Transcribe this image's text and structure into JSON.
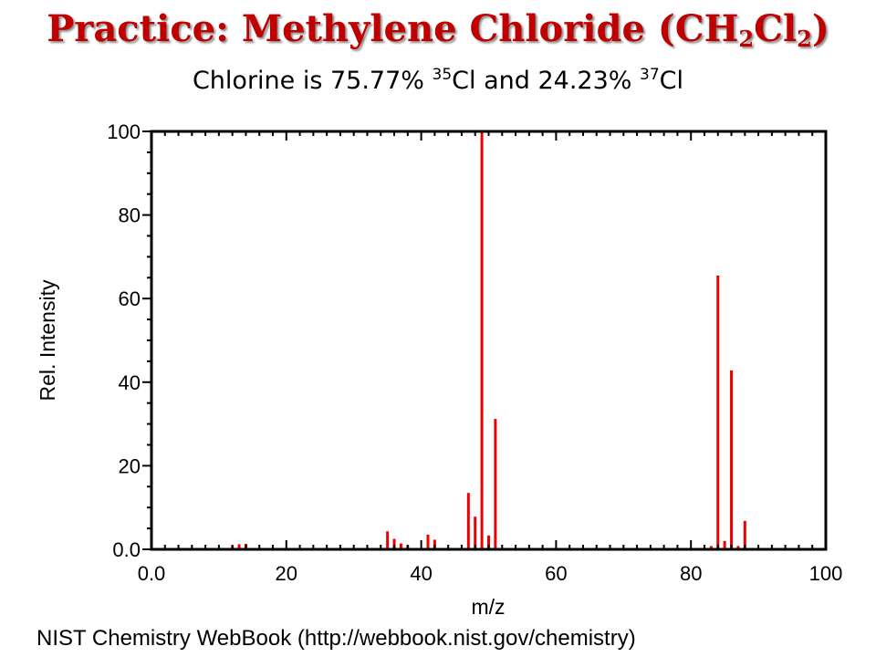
{
  "title": {
    "prefix": "Practice: Methylene Chloride (CH",
    "sub1": "2",
    "mid": "Cl",
    "sub2": "2",
    "suffix": ")"
  },
  "subtitle": {
    "part1": "Chlorine is 75.77% ",
    "sup1": "35",
    "part2": "Cl and 24.23% ",
    "sup2": "37",
    "part3": "Cl"
  },
  "credit": "NIST Chemistry WebBook (http://webbook.nist.gov/chemistry)",
  "colors": {
    "bars": "#ee0000",
    "frame": "#000000"
  },
  "chart_data": {
    "type": "bar",
    "xlabel": "m/z",
    "ylabel": "Rel. Intensity",
    "xlim": [
      0,
      100
    ],
    "ylim": [
      0,
      100
    ],
    "x_ticks": [
      "0.0",
      "20",
      "40",
      "60",
      "80",
      "100"
    ],
    "y_ticks": [
      "0.0",
      "20",
      "40",
      "60",
      "80",
      "100"
    ],
    "grid": false,
    "peaks": [
      {
        "x": 12,
        "y": 0.8
      },
      {
        "x": 13,
        "y": 1.2
      },
      {
        "x": 14,
        "y": 1.3
      },
      {
        "x": 35,
        "y": 4.3
      },
      {
        "x": 36,
        "y": 2.5
      },
      {
        "x": 37,
        "y": 1.4
      },
      {
        "x": 38,
        "y": 0.9
      },
      {
        "x": 41,
        "y": 3.5
      },
      {
        "x": 42,
        "y": 2.3
      },
      {
        "x": 47,
        "y": 13.5
      },
      {
        "x": 48,
        "y": 7.8
      },
      {
        "x": 49,
        "y": 100
      },
      {
        "x": 50,
        "y": 3.3
      },
      {
        "x": 51,
        "y": 31.2
      },
      {
        "x": 83,
        "y": 0.8
      },
      {
        "x": 84,
        "y": 65.5
      },
      {
        "x": 85,
        "y": 2.0
      },
      {
        "x": 86,
        "y": 42.8
      },
      {
        "x": 87,
        "y": 0.8
      },
      {
        "x": 88,
        "y": 6.8
      }
    ]
  }
}
